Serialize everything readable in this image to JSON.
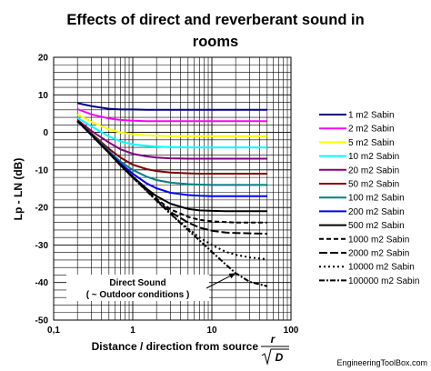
{
  "chart_data": {
    "type": "line",
    "title_lines": [
      "Effects of direct and reverberant sound in",
      "rooms"
    ],
    "xlabel": "Distance / direction from source",
    "xlabel_fraction": {
      "numerator": "r",
      "denominator": "D"
    },
    "ylabel": "Lp - LN (dB)",
    "x_scale": "log",
    "xlim": [
      0.1,
      100
    ],
    "ylim": [
      -50,
      20
    ],
    "x_ticks": [
      "0,1",
      "1",
      "10",
      "100"
    ],
    "y_ticks": [
      "20",
      "10",
      "0",
      "-10",
      "-20",
      "-30",
      "-40",
      "-50"
    ],
    "grid": true,
    "legend_position": "right",
    "x": [
      0.2,
      0.3,
      0.5,
      0.7,
      1,
      1.5,
      2,
      3,
      5,
      7,
      10,
      15,
      20,
      30,
      50
    ],
    "series": [
      {
        "name": "1 m2 Sabin",
        "color": "#000080",
        "dash": "solid",
        "values": [
          7.8,
          7.0,
          6.3,
          6.1,
          6.1,
          6.0,
          6.0,
          6.0,
          6.0,
          6.0,
          6.0,
          6.0,
          6.0,
          6.0,
          6.0
        ]
      },
      {
        "name": "2 m2 Sabin",
        "color": "#ff00ff",
        "dash": "solid",
        "values": [
          6.2,
          4.8,
          3.7,
          3.3,
          3.1,
          3.0,
          3.0,
          3.0,
          3.0,
          3.0,
          3.0,
          3.0,
          3.0,
          3.0,
          3.0
        ]
      },
      {
        "name": "5 m2 Sabin",
        "color": "#ffff00",
        "dash": "solid",
        "values": [
          4.8,
          2.8,
          0.8,
          0.0,
          -0.5,
          -0.8,
          -0.9,
          -1.0,
          -1.0,
          -1.0,
          -1.0,
          -1.0,
          -1.0,
          -1.0,
          -1.0
        ]
      },
      {
        "name": "10 m2 Sabin",
        "color": "#00ffff",
        "dash": "solid",
        "values": [
          3.9,
          1.6,
          -1.1,
          -2.4,
          -3.2,
          -3.6,
          -3.8,
          -3.9,
          -4.0,
          -4.0,
          -4.0,
          -4.0,
          -4.0,
          -4.0,
          -4.0
        ]
      },
      {
        "name": "20 m2 Sabin",
        "color": "#800080",
        "dash": "solid",
        "values": [
          3.3,
          0.4,
          -2.7,
          -4.5,
          -5.7,
          -6.4,
          -6.7,
          -6.9,
          -7.0,
          -7.0,
          -7.0,
          -7.0,
          -7.0,
          -7.0,
          -7.0
        ]
      },
      {
        "name": "50 m2 Sabin",
        "color": "#800000",
        "dash": "solid",
        "values": [
          3.2,
          -0.3,
          -4.4,
          -6.7,
          -8.6,
          -9.8,
          -10.3,
          -10.7,
          -10.9,
          -11.0,
          -11.0,
          -11.0,
          -11.0,
          -11.0,
          -11.0
        ]
      },
      {
        "name": "100 m2 Sabin",
        "color": "#008080",
        "dash": "solid",
        "values": [
          3.1,
          -0.5,
          -5.0,
          -7.8,
          -10.0,
          -11.8,
          -12.7,
          -13.4,
          -13.8,
          -13.9,
          -14.0,
          -14.0,
          -14.0,
          -14.0,
          -14.0
        ]
      },
      {
        "name": "200 m2 Sabin",
        "color": "#0000ff",
        "dash": "solid",
        "values": [
          3.0,
          -0.6,
          -5.3,
          -8.3,
          -11.0,
          -13.6,
          -14.9,
          -16.1,
          -16.7,
          -16.9,
          -17.0,
          -17.0,
          -17.0,
          -17.0,
          -17.0
        ]
      },
      {
        "name": "500 m2 Sabin",
        "color": "#000000",
        "dash": "solid",
        "values": [
          3.0,
          -0.6,
          -5.4,
          -8.6,
          -11.8,
          -15.0,
          -17.0,
          -19.0,
          -20.4,
          -20.8,
          -20.9,
          -21.0,
          -21.0,
          -21.0,
          -21.0
        ]
      },
      {
        "name": "1000 m2 Sabin",
        "color": "#000000",
        "dash": "5,3",
        "values": [
          3.0,
          -0.7,
          -5.5,
          -8.7,
          -12.0,
          -15.3,
          -17.7,
          -20.5,
          -22.5,
          -23.3,
          -23.7,
          -23.9,
          -24.0,
          -24.0,
          -24.0
        ]
      },
      {
        "name": "2000 m2 Sabin",
        "color": "#000000",
        "dash": "9,3",
        "values": [
          3.0,
          -0.7,
          -5.5,
          -8.8,
          -12.0,
          -15.5,
          -18.0,
          -21.2,
          -24.0,
          -25.4,
          -26.2,
          -26.7,
          -26.8,
          -26.9,
          -27.0
        ]
      },
      {
        "name": "10000 m2 Sabin",
        "color": "#000000",
        "dash": "2,3",
        "values": [
          3.0,
          -0.7,
          -5.5,
          -8.8,
          -12.0,
          -15.6,
          -18.2,
          -21.7,
          -25.6,
          -28.0,
          -30.0,
          -31.8,
          -32.6,
          -33.3,
          -33.8
        ]
      },
      {
        "name": "100000 m2 Sabin",
        "color": "#000000",
        "dash": "6,2,2,2",
        "values": [
          3.0,
          -0.7,
          -5.5,
          -8.8,
          -12.0,
          -15.6,
          -18.2,
          -21.7,
          -26.0,
          -28.8,
          -31.8,
          -35.2,
          -37.5,
          -39.8,
          -41.0
        ]
      }
    ],
    "annotations": [
      {
        "lines": [
          "Direct Sound",
          "( ~ Outdoor conditions )"
        ],
        "arrow_to": {
          "x": 20,
          "y": -37.5
        }
      }
    ],
    "credit": "EngineeringToolBox.com"
  }
}
